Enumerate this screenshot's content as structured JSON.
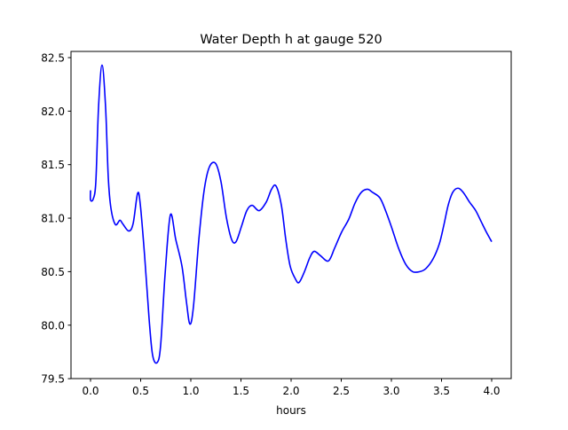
{
  "chart_data": {
    "type": "line",
    "title": "Water Depth h at gauge 520",
    "xlabel": "hours",
    "ylabel": "",
    "xlim": [
      -0.2,
      4.2
    ],
    "ylim": [
      79.5,
      82.55
    ],
    "xticks": [
      0.0,
      0.5,
      1.0,
      1.5,
      2.0,
      2.5,
      3.0,
      3.5,
      4.0
    ],
    "xtick_labels": [
      "0.0",
      "0.5",
      "1.0",
      "1.5",
      "2.0",
      "2.5",
      "3.0",
      "3.5",
      "4.0"
    ],
    "yticks": [
      79.5,
      80.0,
      80.5,
      81.0,
      81.5,
      82.0,
      82.5
    ],
    "ytick_labels": [
      "79.5",
      "80.0",
      "80.5",
      "81.0",
      "81.5",
      "82.0",
      "82.5"
    ],
    "grid": false,
    "series": [
      {
        "name": "h",
        "color": "#0000ff",
        "x": [
          0,
          0,
          0.027,
          0.053,
          0.08,
          0.115,
          0.15,
          0.177,
          0.204,
          0.248,
          0.292,
          0.319,
          0.381,
          0.425,
          0.469,
          0.496,
          0.54,
          0.584,
          0.619,
          0.664,
          0.699,
          0.743,
          0.796,
          0.85,
          0.912,
          0.956,
          0.991,
          1.027,
          1.08,
          1.133,
          1.186,
          1.248,
          1.301,
          1.354,
          1.407,
          1.451,
          1.504,
          1.558,
          1.611,
          1.681,
          1.752,
          1.805,
          1.85,
          1.903,
          1.947,
          1.991,
          2.044,
          2.08,
          2.133,
          2.186,
          2.23,
          2.292,
          2.372,
          2.434,
          2.504,
          2.575,
          2.637,
          2.699,
          2.761,
          2.814,
          2.885,
          2.938,
          3.0,
          3.071,
          3.142,
          3.212,
          3.283,
          3.345,
          3.416,
          3.478,
          3.522,
          3.566,
          3.611,
          3.664,
          3.717,
          3.779,
          3.841,
          3.894,
          3.947,
          4.0
        ],
        "y": [
          81.26,
          81.17,
          81.18,
          81.34,
          82.04,
          82.43,
          82.04,
          81.38,
          81.09,
          80.94,
          80.98,
          80.95,
          80.88,
          80.95,
          81.23,
          81.13,
          80.64,
          80.06,
          79.72,
          79.65,
          79.81,
          80.47,
          81.03,
          80.8,
          80.55,
          80.22,
          80.01,
          80.18,
          80.8,
          81.26,
          81.48,
          81.51,
          81.34,
          81.01,
          80.8,
          80.78,
          80.92,
          81.07,
          81.12,
          81.07,
          81.15,
          81.27,
          81.3,
          81.12,
          80.8,
          80.55,
          80.43,
          80.4,
          80.5,
          80.63,
          80.69,
          80.65,
          80.6,
          80.72,
          80.87,
          80.99,
          81.14,
          81.24,
          81.27,
          81.24,
          81.19,
          81.08,
          80.92,
          80.72,
          80.57,
          80.5,
          80.5,
          80.53,
          80.62,
          80.76,
          80.93,
          81.12,
          81.24,
          81.28,
          81.24,
          81.15,
          81.07,
          80.97,
          80.87,
          80.78
        ]
      }
    ]
  }
}
